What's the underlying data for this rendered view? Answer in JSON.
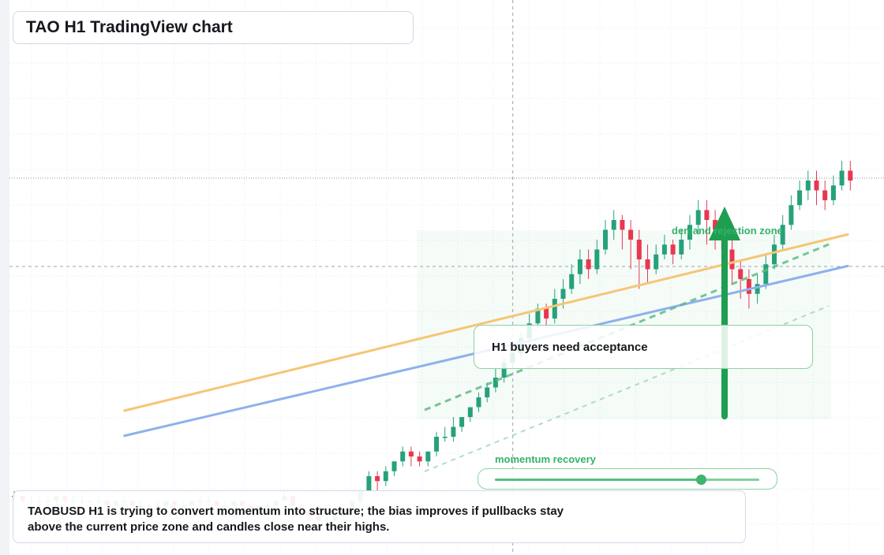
{
  "title": "TAO H1 TradingView chart",
  "callout": "H1 buyers need acceptance",
  "zone_label": "demand rejection zone",
  "slider": {
    "label": "momentum recovery",
    "value": 0.78
  },
  "note": {
    "line1": "TAOBUSD H1 is trying to convert momentum into structure; the bias improves if pullbacks stay",
    "line2": "above the current price zone and candles close near their highs."
  },
  "colors": {
    "up": "#26a17b",
    "down": "#e8374f",
    "trend_orange": "#f5c675",
    "trend_blue": "#8fb0ec",
    "accent_green": "#1e9e50"
  },
  "chart_data": {
    "type": "candlestick",
    "title": "",
    "xlabel": "",
    "ylabel": "",
    "grid": true,
    "ylim": [
      0,
      100
    ],
    "crosshair": {
      "index": 51,
      "price": 51.6
    },
    "trendlines": [
      {
        "name": "",
        "from": [
          11,
          29.3
        ],
        "to": [
          93,
          61.7
        ]
      },
      {
        "name": "",
        "from": [
          11,
          24.2
        ],
        "to": [
          93,
          55.3
        ]
      }
    ],
    "candles": [
      [
        12,
        12,
        13,
        11
      ],
      [
        12,
        11,
        12,
        10
      ],
      [
        11,
        11,
        12,
        10
      ],
      [
        11,
        11,
        12,
        9
      ],
      [
        11,
        11,
        12,
        10
      ],
      [
        11,
        12,
        12,
        10
      ],
      [
        12,
        11,
        12,
        10
      ],
      [
        11,
        11,
        12,
        10
      ],
      [
        11,
        11,
        12,
        10
      ],
      [
        11,
        11,
        11,
        10
      ],
      [
        11,
        11,
        12,
        10
      ],
      [
        11,
        10,
        11,
        9
      ],
      [
        10,
        11,
        11,
        9
      ],
      [
        11,
        11,
        12,
        10
      ],
      [
        11,
        10,
        11,
        9
      ],
      [
        10,
        10,
        11,
        9
      ],
      [
        10,
        10,
        11,
        9
      ],
      [
        10,
        10,
        11,
        9
      ],
      [
        10,
        11,
        11,
        9
      ],
      [
        11,
        10,
        11,
        9
      ],
      [
        10,
        10,
        11,
        9
      ],
      [
        10,
        11,
        11,
        9
      ],
      [
        11,
        11,
        12,
        10
      ],
      [
        11,
        11,
        12,
        10
      ],
      [
        11,
        10,
        11,
        9
      ],
      [
        10,
        10,
        11,
        9
      ],
      [
        10,
        11,
        11,
        9
      ],
      [
        11,
        10,
        11,
        9
      ],
      [
        10,
        9,
        10,
        8
      ],
      [
        9,
        10,
        10,
        8
      ],
      [
        10,
        10,
        11,
        9
      ],
      [
        10,
        11,
        11,
        9
      ],
      [
        11,
        12,
        13,
        11
      ],
      [
        12,
        10,
        12,
        9
      ],
      [
        10,
        9,
        10,
        8
      ],
      [
        9,
        8,
        9,
        7
      ],
      [
        8,
        7,
        8,
        6
      ],
      [
        7,
        7,
        8,
        6
      ],
      [
        7,
        8,
        8,
        7
      ],
      [
        8,
        9,
        9,
        7
      ],
      [
        9,
        11,
        11,
        8
      ],
      [
        11,
        13,
        13,
        10
      ],
      [
        13,
        16,
        17,
        13
      ],
      [
        16,
        15,
        17,
        13
      ],
      [
        15,
        17,
        18,
        14
      ],
      [
        17,
        19,
        19,
        16
      ],
      [
        19,
        21,
        22,
        18
      ],
      [
        21,
        20,
        22,
        18
      ],
      [
        20,
        19,
        21,
        18
      ],
      [
        19,
        21,
        21,
        18
      ],
      [
        21,
        24,
        25,
        20
      ],
      [
        24,
        24,
        26,
        23
      ],
      [
        24,
        26,
        28,
        23
      ],
      [
        26,
        28,
        28,
        25
      ],
      [
        28,
        30,
        30,
        27
      ],
      [
        30,
        32,
        33,
        29
      ],
      [
        32,
        34,
        35,
        31
      ],
      [
        34,
        36,
        38,
        33
      ],
      [
        36,
        39,
        40,
        35
      ],
      [
        39,
        41,
        42,
        38
      ],
      [
        41,
        44,
        45,
        40
      ],
      [
        44,
        47,
        49,
        43
      ],
      [
        47,
        50,
        51,
        46
      ],
      [
        50,
        48,
        51,
        46
      ],
      [
        48,
        52,
        54,
        47
      ],
      [
        52,
        54,
        56,
        50
      ],
      [
        54,
        57,
        59,
        53
      ],
      [
        57,
        60,
        62,
        55
      ],
      [
        60,
        58,
        62,
        56
      ],
      [
        58,
        62,
        64,
        57
      ],
      [
        62,
        66,
        68,
        61
      ],
      [
        66,
        68,
        70,
        64
      ],
      [
        68,
        66,
        69,
        62
      ],
      [
        66,
        64,
        68,
        58
      ],
      [
        64,
        60,
        66,
        54
      ],
      [
        60,
        58,
        63,
        55
      ],
      [
        58,
        61,
        63,
        57
      ],
      [
        61,
        63,
        65,
        60
      ],
      [
        63,
        61,
        64,
        59
      ],
      [
        61,
        64,
        66,
        60
      ],
      [
        64,
        67,
        69,
        62
      ],
      [
        67,
        70,
        72,
        65
      ],
      [
        70,
        68,
        72,
        63
      ],
      [
        68,
        66,
        70,
        62
      ],
      [
        66,
        62,
        68,
        58
      ],
      [
        62,
        58,
        64,
        55
      ],
      [
        58,
        56,
        60,
        52
      ],
      [
        56,
        53,
        58,
        50
      ],
      [
        53,
        55,
        57,
        51
      ],
      [
        55,
        59,
        61,
        54
      ],
      [
        59,
        63,
        65,
        58
      ],
      [
        63,
        67,
        69,
        62
      ],
      [
        67,
        71,
        73,
        66
      ],
      [
        71,
        74,
        76,
        70
      ],
      [
        74,
        76,
        78,
        72
      ],
      [
        76,
        74,
        78,
        71
      ],
      [
        74,
        72,
        76,
        70
      ],
      [
        72,
        75,
        77,
        71
      ],
      [
        75,
        78,
        80,
        74
      ],
      [
        78,
        76,
        80,
        74
      ]
    ]
  }
}
